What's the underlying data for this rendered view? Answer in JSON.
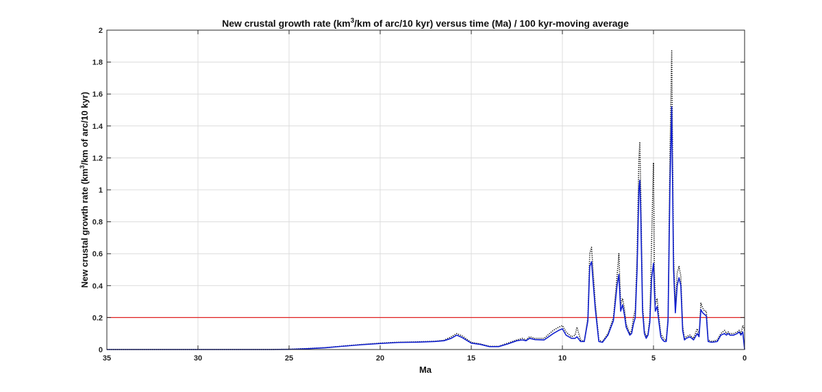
{
  "chart_data": {
    "type": "line",
    "title_main": "New crustal growth rate (km",
    "title_sup": "3",
    "title_rest": "/km of arc/10 kyr) versus time (Ma) / 100 kyr-moving average",
    "xlabel": "Ma",
    "ylabel_main": "New crustal growth rate (km",
    "ylabel_sup": "3",
    "ylabel_rest": "/km of arc/10 kyr)",
    "xlim": [
      35,
      0
    ],
    "ylim": [
      0,
      2
    ],
    "x_reversed": true,
    "x_ticks": [
      35,
      30,
      25,
      20,
      15,
      10,
      5,
      0
    ],
    "y_ticks": [
      0,
      0.2,
      0.4,
      0.6,
      0.8,
      1,
      1.2,
      1.4,
      1.6,
      1.8,
      2
    ],
    "y_tick_labels": [
      "0",
      "0.2",
      "0.4",
      "0.6",
      "0.8",
      "1",
      "1.2",
      "1.4",
      "1.6",
      "1.8",
      "2"
    ],
    "grid": true,
    "threshold": {
      "y": 0.2,
      "color": "#e02020"
    },
    "series": [
      {
        "style": "dotted",
        "color": "#000000",
        "x": [
          35,
          30,
          26,
          25,
          24,
          23,
          22,
          21,
          20,
          19,
          18,
          17,
          16.5,
          16.1,
          15.8,
          15.5,
          15,
          14.5,
          14,
          13.5,
          13,
          12.5,
          12.2,
          12,
          11.8,
          11.5,
          11,
          10.5,
          10.2,
          10,
          9.8,
          9.5,
          9.3,
          9.2,
          9.0,
          8.8,
          8.6,
          8.5,
          8.4,
          8.2,
          8.0,
          7.8,
          7.5,
          7.2,
          7.0,
          6.9,
          6.8,
          6.7,
          6.6,
          6.5,
          6.3,
          6.2,
          6.1,
          6.0,
          5.9,
          5.8,
          5.75,
          5.7,
          5.6,
          5.5,
          5.4,
          5.3,
          5.2,
          5.1,
          5.0,
          4.95,
          4.9,
          4.8,
          4.7,
          4.6,
          4.5,
          4.4,
          4.3,
          4.2,
          4.1,
          4.0,
          3.9,
          3.8,
          3.7,
          3.6,
          3.5,
          3.4,
          3.3,
          3.2,
          3.0,
          2.8,
          2.6,
          2.5,
          2.4,
          2.3,
          2.2,
          2.1,
          2.0,
          1.8,
          1.5,
          1.3,
          1.1,
          1.0,
          0.9,
          0.8,
          0.6,
          0.4,
          0.3,
          0.2,
          0.1,
          0.0
        ],
        "values": [
          0,
          0,
          0,
          0.002,
          0.006,
          0.012,
          0.022,
          0.032,
          0.04,
          0.046,
          0.048,
          0.052,
          0.058,
          0.08,
          0.1,
          0.085,
          0.045,
          0.035,
          0.02,
          0.02,
          0.04,
          0.06,
          0.07,
          0.06,
          0.08,
          0.07,
          0.07,
          0.12,
          0.14,
          0.15,
          0.11,
          0.08,
          0.09,
          0.14,
          0.06,
          0.05,
          0.2,
          0.6,
          0.64,
          0.3,
          0.06,
          0.05,
          0.1,
          0.2,
          0.46,
          0.6,
          0.28,
          0.32,
          0.26,
          0.16,
          0.1,
          0.12,
          0.2,
          0.25,
          0.6,
          1.2,
          1.3,
          1.0,
          0.28,
          0.12,
          0.08,
          0.1,
          0.2,
          0.7,
          1.17,
          0.5,
          0.28,
          0.32,
          0.2,
          0.1,
          0.08,
          0.06,
          0.06,
          0.2,
          1.2,
          1.87,
          0.6,
          0.27,
          0.48,
          0.52,
          0.46,
          0.15,
          0.07,
          0.08,
          0.09,
          0.07,
          0.13,
          0.09,
          0.29,
          0.26,
          0.24,
          0.24,
          0.06,
          0.05,
          0.06,
          0.1,
          0.12,
          0.1,
          0.11,
          0.1,
          0.1,
          0.11,
          0.12,
          0.1,
          0.15,
          0.12
        ]
      },
      {
        "style": "solid",
        "color": "#1020d0",
        "x": [
          35,
          30,
          26,
          25,
          24,
          23,
          22,
          21,
          20,
          19,
          18,
          17,
          16.5,
          16.1,
          15.8,
          15.5,
          15,
          14.5,
          14,
          13.5,
          13,
          12.5,
          12.2,
          12,
          11.8,
          11.5,
          11,
          10.5,
          10.2,
          10,
          9.8,
          9.5,
          9.3,
          9.2,
          9.0,
          8.8,
          8.6,
          8.5,
          8.4,
          8.2,
          8.0,
          7.8,
          7.5,
          7.2,
          7.0,
          6.9,
          6.8,
          6.7,
          6.6,
          6.5,
          6.3,
          6.2,
          6.1,
          6.0,
          5.9,
          5.8,
          5.75,
          5.7,
          5.6,
          5.5,
          5.4,
          5.3,
          5.2,
          5.1,
          5.0,
          4.95,
          4.9,
          4.8,
          4.7,
          4.6,
          4.5,
          4.4,
          4.3,
          4.2,
          4.1,
          4.0,
          3.9,
          3.8,
          3.7,
          3.6,
          3.5,
          3.4,
          3.3,
          3.2,
          3.0,
          2.8,
          2.6,
          2.5,
          2.4,
          2.3,
          2.2,
          2.1,
          2.0,
          1.8,
          1.5,
          1.3,
          1.1,
          1.0,
          0.9,
          0.8,
          0.6,
          0.4,
          0.3,
          0.2,
          0.1,
          0.0
        ],
        "values": [
          0,
          0,
          0,
          0.001,
          0.005,
          0.011,
          0.021,
          0.03,
          0.038,
          0.044,
          0.046,
          0.05,
          0.055,
          0.07,
          0.09,
          0.075,
          0.04,
          0.032,
          0.018,
          0.018,
          0.035,
          0.055,
          0.06,
          0.055,
          0.07,
          0.062,
          0.06,
          0.1,
          0.12,
          0.13,
          0.09,
          0.07,
          0.07,
          0.08,
          0.05,
          0.05,
          0.18,
          0.52,
          0.55,
          0.26,
          0.05,
          0.045,
          0.09,
          0.18,
          0.4,
          0.47,
          0.24,
          0.28,
          0.22,
          0.14,
          0.09,
          0.1,
          0.16,
          0.2,
          0.5,
          1.0,
          1.06,
          0.85,
          0.24,
          0.1,
          0.07,
          0.09,
          0.17,
          0.45,
          0.54,
          0.38,
          0.24,
          0.27,
          0.17,
          0.08,
          0.06,
          0.05,
          0.05,
          0.18,
          1.0,
          1.52,
          0.5,
          0.23,
          0.4,
          0.45,
          0.4,
          0.12,
          0.06,
          0.07,
          0.08,
          0.06,
          0.1,
          0.08,
          0.25,
          0.23,
          0.22,
          0.21,
          0.05,
          0.045,
          0.05,
          0.09,
          0.1,
          0.09,
          0.1,
          0.09,
          0.09,
          0.1,
          0.11,
          0.09,
          0.11,
          0.0
        ]
      }
    ]
  }
}
